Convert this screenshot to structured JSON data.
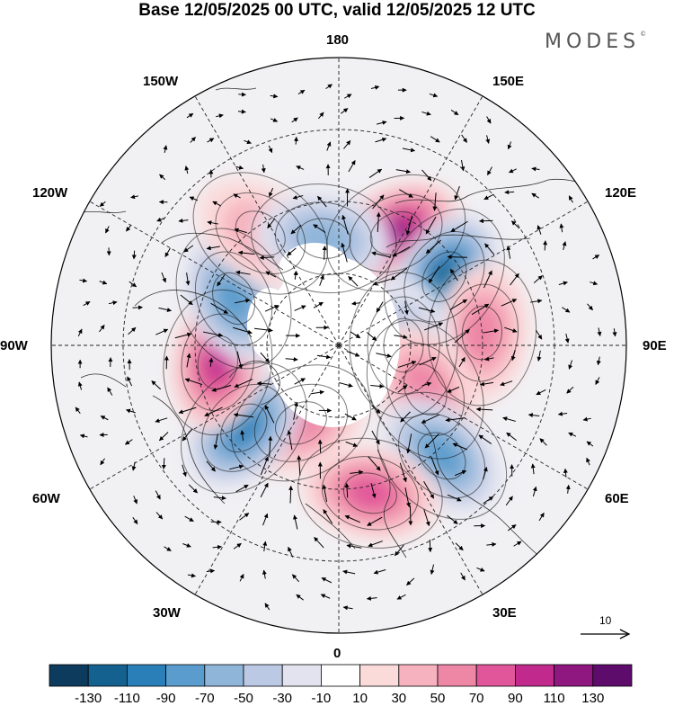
{
  "title": "Base 12/05/2025 00 UTC, valid 12/05/2025 12 UTC",
  "brand": "MODES",
  "brand_mark": "©",
  "longitude_labels": {
    "top": "180",
    "bottom": "0",
    "left": "90W",
    "right": "90E",
    "upper_left": "150W",
    "upper_right": "150E",
    "mid_upper_left": "120W",
    "mid_upper_right": "120E",
    "mid_lower_left": "60W",
    "mid_lower_right": "60E",
    "lower_left": "30W",
    "lower_right": "30E"
  },
  "reference_vector": {
    "label": "10"
  },
  "colorbar": {
    "labels": [
      "-130",
      "-110",
      "-90",
      "-70",
      "-50",
      "-30",
      "-10",
      "10",
      "30",
      "50",
      "70",
      "90",
      "110",
      "130"
    ],
    "colors": [
      "#0d3b5e",
      "#14608f",
      "#2a7fb8",
      "#5a9ccd",
      "#8fb5d9",
      "#bcc9e4",
      "#e3e3ef",
      "#ffffff",
      "#fbdada",
      "#f6b2be",
      "#ee86a6",
      "#e1559a",
      "#c12a8c",
      "#8e1880",
      "#5d0c6b"
    ]
  },
  "map_data": {
    "projection": "north-polar-stereographic",
    "center": "90N",
    "anomalies": [
      {
        "lon_deg": 153,
        "lat_deg": 55,
        "value": 110
      },
      {
        "lon_deg": 123,
        "lat_deg": 55,
        "value": -110
      },
      {
        "lon_deg": 95,
        "lat_deg": 50,
        "value": 50
      },
      {
        "lon_deg": 90,
        "lat_deg": 72,
        "value": -30
      },
      {
        "lon_deg": 63,
        "lat_deg": 63,
        "value": 50
      },
      {
        "lon_deg": 43,
        "lat_deg": 48,
        "value": -70
      },
      {
        "lon_deg": 12,
        "lat_deg": 48,
        "value": 70
      },
      {
        "lon_deg": -26,
        "lat_deg": 66,
        "value": 50
      },
      {
        "lon_deg": -49,
        "lat_deg": 55,
        "value": -90
      },
      {
        "lon_deg": -82,
        "lat_deg": 56,
        "value": 90
      },
      {
        "lon_deg": -114,
        "lat_deg": 58,
        "value": -70
      },
      {
        "lon_deg": -145,
        "lat_deg": 52,
        "value": 30
      },
      {
        "lon_deg": -172,
        "lat_deg": 60,
        "value": -50
      }
    ]
  }
}
